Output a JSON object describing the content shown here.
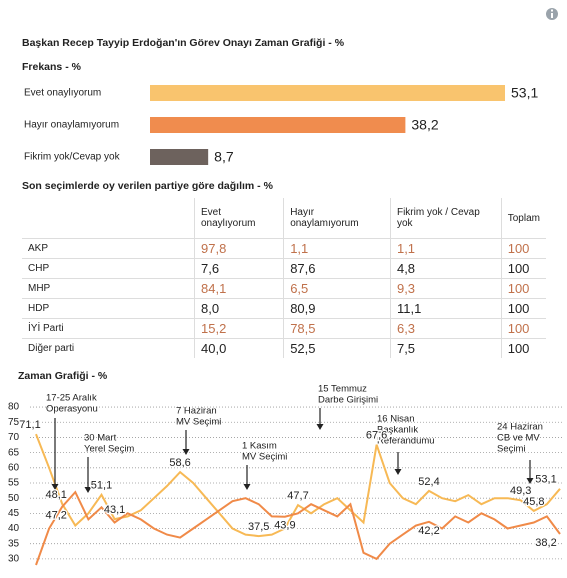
{
  "title": "Başkan Recep Tayyip Erdoğan'ın Görev Onayı Zaman Grafiği - %",
  "chart_data": [
    {
      "type": "hbar",
      "title": "Frekans - %",
      "categories": [
        "Evet onaylıyorum",
        "Hayır onaylamıyorum",
        "Fikrim yok/Cevap yok"
      ],
      "values": [
        53.1,
        38.2,
        8.7
      ],
      "value_labels": [
        "53,1",
        "38,2",
        "8,7"
      ],
      "colors": [
        "#f9c46e",
        "#f08c4e",
        "#6d625d"
      ]
    },
    {
      "type": "line",
      "title": "Zaman Grafiği - %",
      "categories": [
        null,
        null,
        null,
        null,
        null,
        null,
        null,
        null,
        null,
        null,
        null,
        null,
        null,
        null,
        null,
        null,
        null,
        null,
        null,
        null,
        null,
        null,
        null,
        null,
        null,
        null,
        null,
        null,
        null,
        null,
        null,
        null,
        null,
        null,
        null,
        null,
        null,
        null,
        null,
        null,
        null
      ],
      "ylim": [
        27,
        82
      ],
      "yticks": [
        30,
        35,
        40,
        45,
        50,
        55,
        60,
        65,
        70,
        75,
        80
      ],
      "grid": true,
      "series": [
        {
          "color": "#f7b955",
          "values": [
            71.1,
            60,
            48.1,
            41,
            45,
            51.1,
            43.1,
            44,
            46,
            50,
            54,
            58.6,
            55,
            50,
            45,
            40,
            38,
            37.5,
            38,
            40,
            47.7,
            45,
            48,
            50,
            46,
            42,
            67.6,
            55,
            50,
            48,
            52.4,
            50,
            49,
            51,
            48,
            50,
            50,
            49.3,
            45.8,
            48,
            53.1
          ],
          "value_labels": [
            "71,1",
            null,
            "48,1",
            null,
            null,
            "51,1",
            "43,1",
            null,
            null,
            null,
            null,
            "58,6",
            null,
            null,
            null,
            null,
            null,
            "37,5",
            null,
            null,
            "47,7",
            null,
            null,
            null,
            null,
            null,
            "67,6",
            null,
            null,
            null,
            "52,4",
            null,
            null,
            null,
            null,
            null,
            null,
            "49,3",
            "45,8",
            null,
            "53,1"
          ]
        },
        {
          "color": "#f08a48",
          "values": [
            28,
            40,
            47.2,
            52,
            43,
            47,
            42,
            45,
            43,
            40,
            38,
            37,
            40,
            43,
            46,
            49,
            50,
            48,
            44,
            43.9,
            45,
            48,
            46,
            44,
            48,
            32,
            30,
            35,
            38,
            41,
            42.2,
            40,
            44,
            42,
            45,
            43,
            40,
            41,
            42,
            44,
            38.2
          ],
          "value_labels": [
            null,
            null,
            "47,2",
            null,
            null,
            null,
            null,
            null,
            null,
            null,
            null,
            null,
            null,
            null,
            null,
            null,
            null,
            null,
            null,
            "43,9",
            null,
            null,
            null,
            null,
            null,
            null,
            null,
            null,
            null,
            null,
            "42,2",
            null,
            null,
            null,
            null,
            null,
            null,
            null,
            null,
            null,
            "38,2"
          ]
        }
      ],
      "annotations": [
        {
          "text": [
            "17-25 Aralık",
            "Operasyonu"
          ]
        },
        {
          "text": [
            "30 Mart",
            "Yerel Seçim"
          ]
        },
        {
          "text": [
            "7 Haziran",
            "MV Seçimi"
          ]
        },
        {
          "text": [
            "1 Kasım",
            "MV Seçimi"
          ]
        },
        {
          "text": [
            "15 Temmuz",
            "Darbe Girişimi"
          ]
        },
        {
          "text": [
            "16 Nisan",
            "Başkanlık",
            "Referandumu"
          ]
        },
        {
          "text": [
            "24 Haziran",
            "CB ve MV",
            "Seçimi"
          ]
        }
      ]
    }
  ],
  "table": {
    "title": "Son seçimlerde oy verilen partiye göre dağılım - %",
    "columns": [
      "Evet onaylıyorum",
      "Hayır onaylamıyorum",
      "Fikrim yok / Cevap yok",
      "Toplam"
    ],
    "accent_color": "#c0714b",
    "rows": [
      {
        "label": "AKP",
        "accent": true,
        "cells": [
          "97,8",
          "1,1",
          "1,1",
          "100"
        ]
      },
      {
        "label": "CHP",
        "accent": false,
        "cells": [
          "7,6",
          "87,6",
          "4,8",
          "100"
        ]
      },
      {
        "label": "MHP",
        "accent": true,
        "cells": [
          "84,1",
          "6,5",
          "9,3",
          "100"
        ]
      },
      {
        "label": "HDP",
        "accent": false,
        "cells": [
          "8,0",
          "80,9",
          "11,1",
          "100"
        ]
      },
      {
        "label": "İYİ Parti",
        "accent": true,
        "cells": [
          "15,2",
          "78,5",
          "6,3",
          "100"
        ]
      },
      {
        "label": "Diğer parti",
        "accent": false,
        "cells": [
          "40,0",
          "52,5",
          "7,5",
          "100"
        ]
      }
    ]
  }
}
